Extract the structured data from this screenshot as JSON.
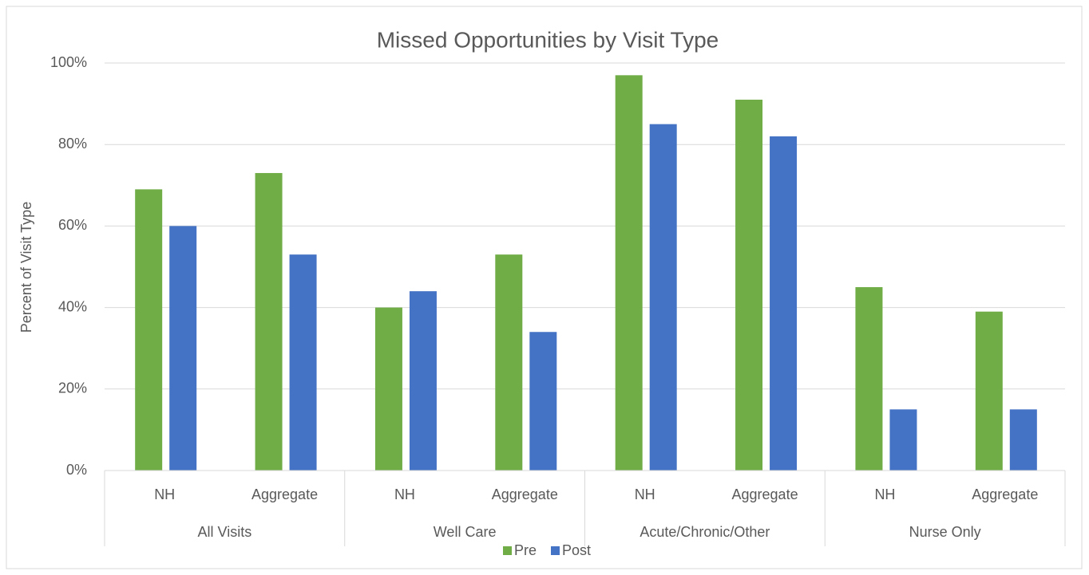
{
  "chart_data": {
    "type": "bar",
    "title": "Missed Opportunities by Visit Type",
    "y_label": "Percent of Visit Type",
    "categories": [
      "NH",
      "Aggregate",
      "NH",
      "Aggregate",
      "NH",
      "Aggregate",
      "NH",
      "Aggregate"
    ],
    "groups": [
      "All Visits",
      "Well Care",
      "Acute/Chronic/Other",
      "Nurse Only"
    ],
    "series": [
      {
        "name": "Pre",
        "color": "#70ad47",
        "values": [
          69,
          73,
          40,
          53,
          97,
          91,
          45,
          39
        ]
      },
      {
        "name": "Post",
        "color": "#4472c4",
        "values": [
          60,
          53,
          44,
          34,
          85,
          82,
          15,
          15
        ]
      }
    ],
    "ylim": [
      0,
      100
    ],
    "yticks": [
      {
        "value": 0,
        "label": "0%"
      },
      {
        "value": 20,
        "label": "20%"
      },
      {
        "value": 40,
        "label": "40%"
      },
      {
        "value": 60,
        "label": "60%"
      },
      {
        "value": 80,
        "label": "80%"
      },
      {
        "value": 100,
        "label": "100%"
      }
    ],
    "grid": true,
    "legend": "bottom"
  }
}
